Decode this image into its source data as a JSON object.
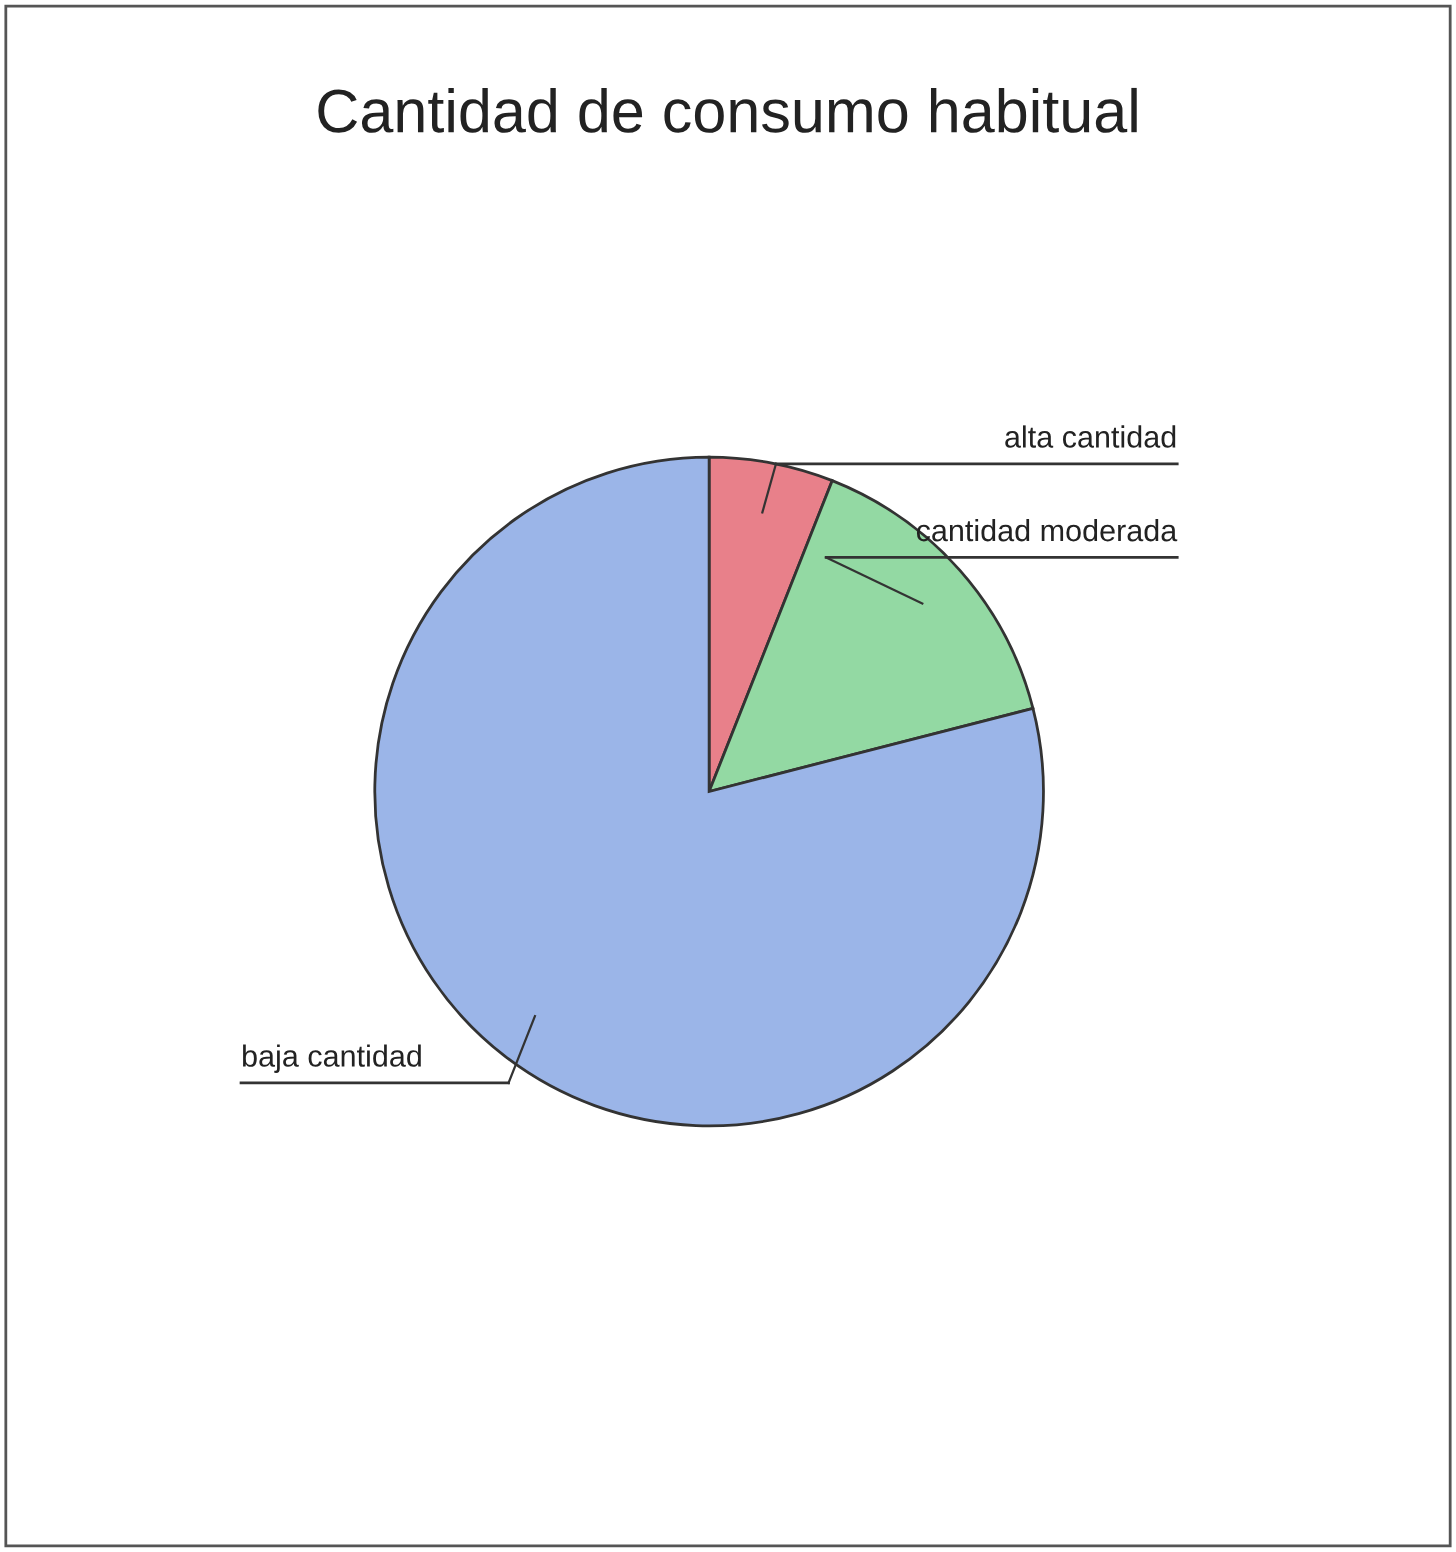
{
  "chart_data": {
    "type": "pie",
    "title": "Cantidad de consumo habitual",
    "categories": [
      "alta cantidad",
      "cantidad moderada",
      "baja cantidad"
    ],
    "values": [
      6,
      15,
      79
    ],
    "colors": [
      "#e8808a",
      "#93d9a3",
      "#9bb5e8"
    ],
    "legend": false
  }
}
